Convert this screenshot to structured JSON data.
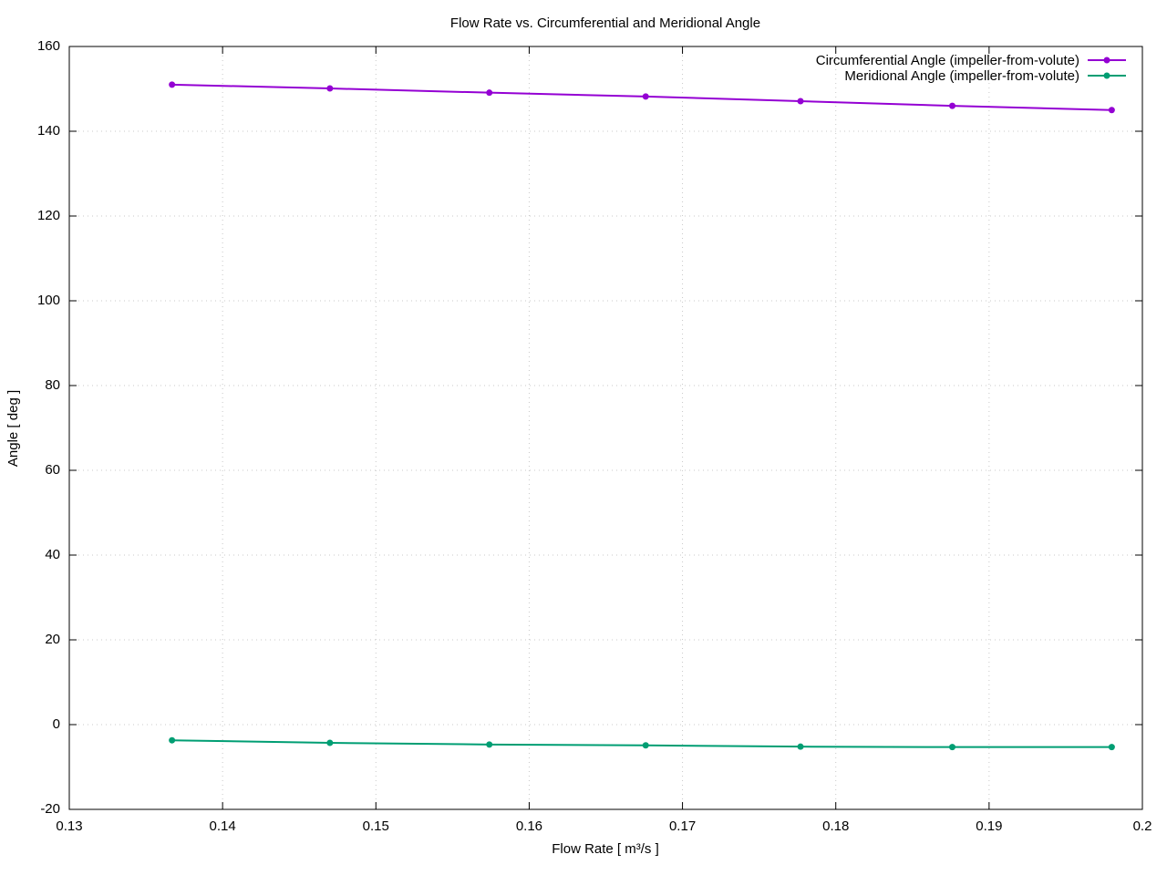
{
  "chart_data": {
    "type": "line",
    "title": "Flow Rate vs. Circumferential and Meridional Angle",
    "x_label": "Flow Rate [ m³/s ]",
    "y_label": "Angle [ deg ]",
    "x": [
      0.1367,
      0.147,
      0.1574,
      0.1676,
      0.1777,
      0.1876,
      0.198
    ],
    "series": [
      {
        "name": "Circumferential Angle (impeller-from-volute)",
        "color": "#9400d3",
        "values": [
          151.0,
          150.1,
          149.1,
          148.2,
          147.1,
          146.0,
          145.0
        ]
      },
      {
        "name": "Meridional Angle (impeller-from-volute)",
        "color": "#009e73",
        "values": [
          -3.7,
          -4.3,
          -4.7,
          -4.9,
          -5.2,
          -5.3,
          -5.3
        ]
      }
    ],
    "xlim": [
      0.13,
      0.2
    ],
    "xticks": [
      0.13,
      0.14,
      0.15,
      0.16,
      0.17,
      0.18,
      0.19,
      0.2
    ],
    "ylim": [
      -20,
      160
    ],
    "yticks": [
      -20,
      0,
      20,
      40,
      60,
      80,
      100,
      120,
      140,
      160
    ],
    "grid": true,
    "legend": "top-right"
  }
}
